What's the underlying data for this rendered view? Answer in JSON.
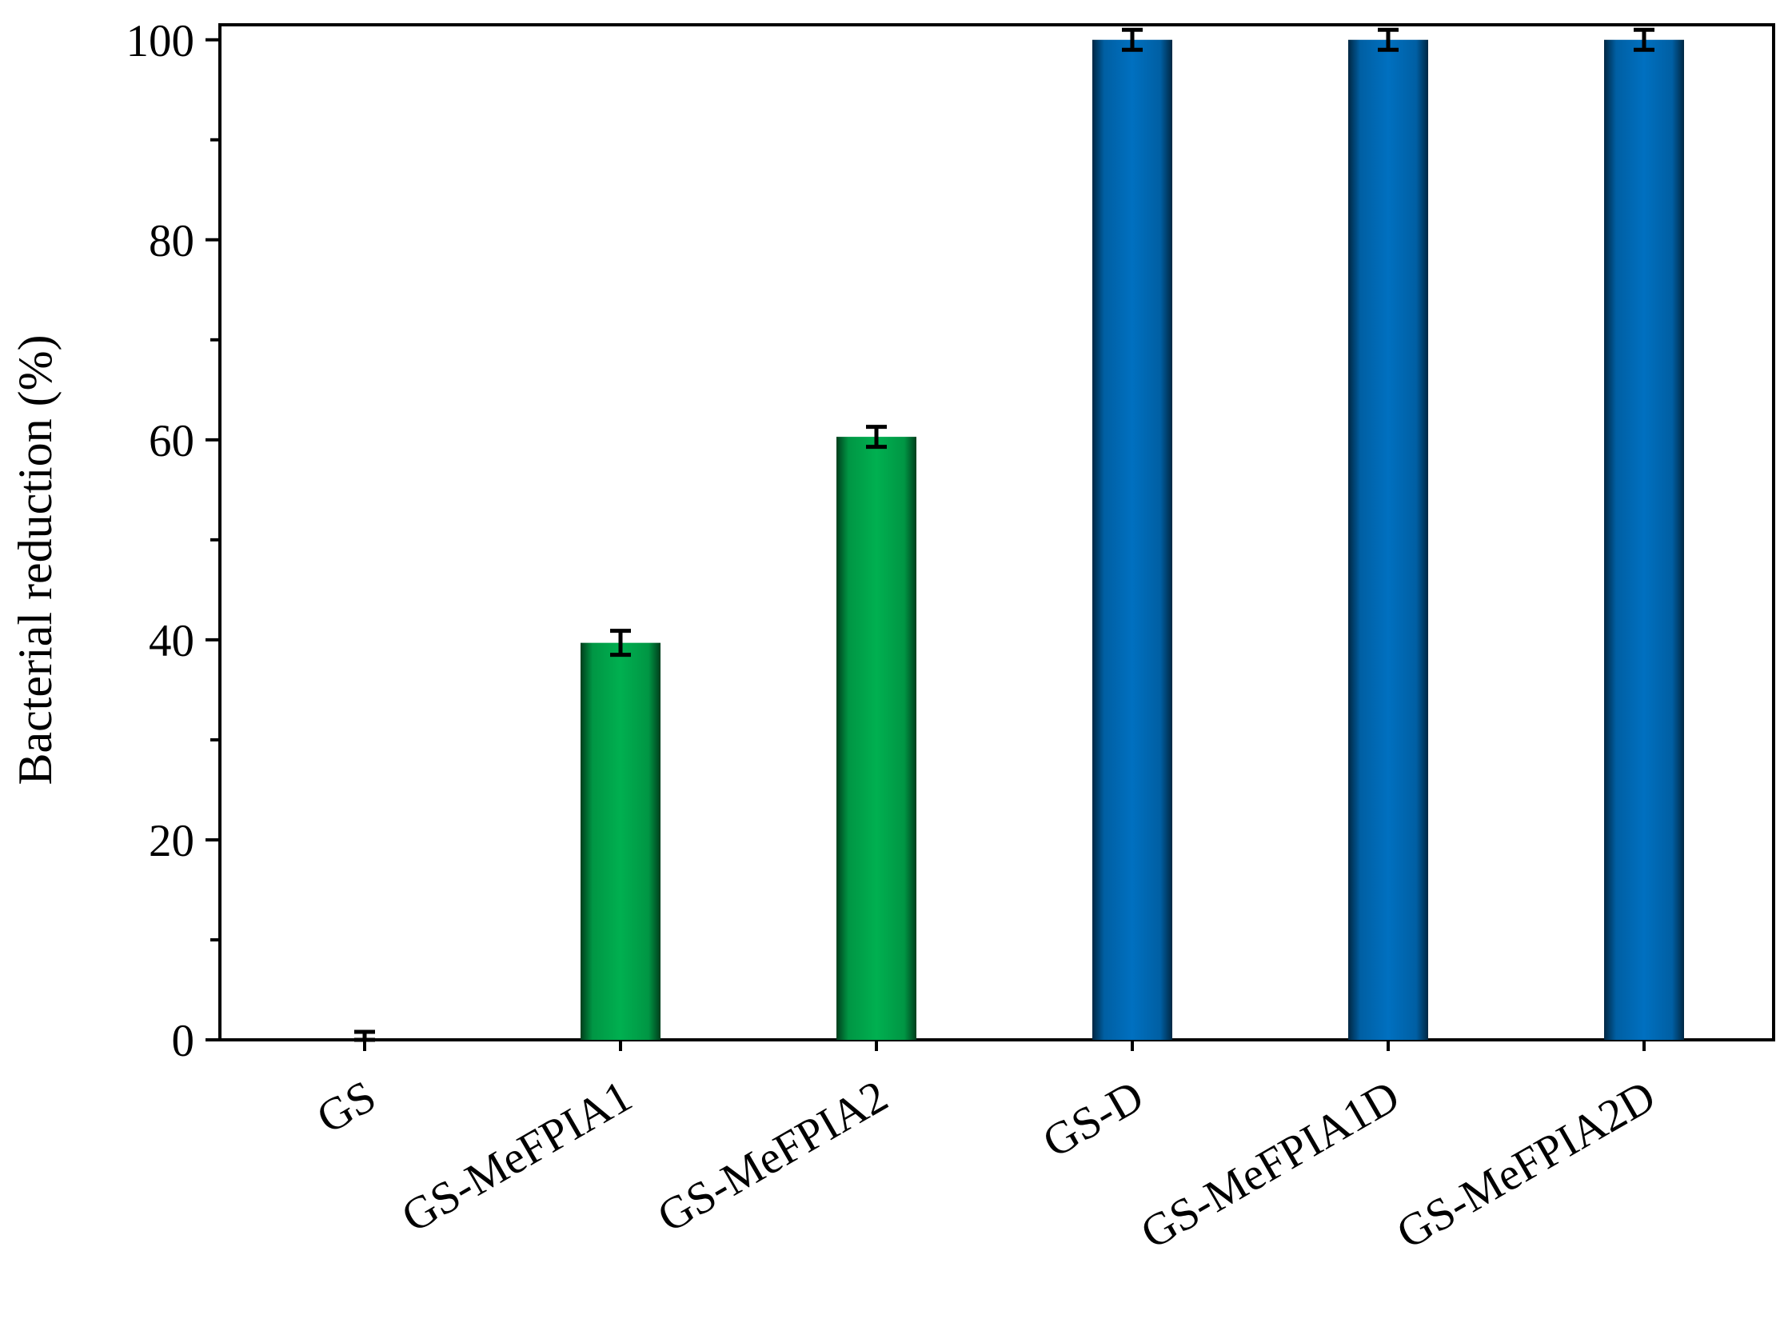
{
  "chart_data": {
    "type": "bar",
    "y_label": "Bacterial reduction (%)",
    "categories": [
      "GS",
      "GS-MeFPIA1",
      "GS-MeFPIA2",
      "GS-D",
      "GS-MeFPIA1D",
      "GS-MeFPIA2D"
    ],
    "values": [
      0,
      39.7,
      60.3,
      100,
      100,
      100
    ],
    "errors": [
      0.8,
      1.2,
      1.0,
      1.0,
      1.0,
      1.0
    ],
    "colors": [
      "#00b050",
      "#00b050",
      "#00b050",
      "#0070c0",
      "#0070c0",
      "#0070c0"
    ],
    "ylim": [
      0,
      101.5
    ],
    "yticks": [
      0,
      20,
      40,
      60,
      80,
      100
    ],
    "minor_yticks": [
      10,
      30,
      50,
      70,
      90
    ],
    "grid": false
  }
}
